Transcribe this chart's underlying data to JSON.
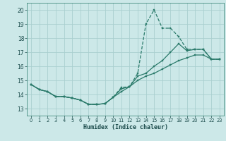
{
  "xlabel": "Humidex (Indice chaleur)",
  "ylabel": "",
  "xlim": [
    -0.5,
    23.5
  ],
  "ylim": [
    12.5,
    20.5
  ],
  "yticks": [
    13,
    14,
    15,
    16,
    17,
    18,
    19,
    20
  ],
  "xticks": [
    0,
    1,
    2,
    3,
    4,
    5,
    6,
    7,
    8,
    9,
    10,
    11,
    12,
    13,
    14,
    15,
    16,
    17,
    18,
    19,
    20,
    21,
    22,
    23
  ],
  "bg_color": "#cce8e8",
  "grid_color": "#aacfcf",
  "line_color": "#2a7a6a",
  "line1_x": [
    0,
    1,
    2,
    3,
    4,
    5,
    6,
    7,
    8,
    9,
    10,
    11,
    12,
    13,
    14,
    15,
    16,
    17,
    18,
    19,
    20,
    21,
    22,
    23
  ],
  "line1_y": [
    14.7,
    14.35,
    14.2,
    13.85,
    13.85,
    13.75,
    13.6,
    13.3,
    13.3,
    13.35,
    13.8,
    14.5,
    14.55,
    15.5,
    19.0,
    20.0,
    18.7,
    18.7,
    18.1,
    17.2,
    17.2,
    17.2,
    16.5,
    16.5
  ],
  "line2_x": [
    0,
    1,
    2,
    3,
    4,
    5,
    6,
    7,
    8,
    9,
    10,
    11,
    12,
    13,
    14,
    15,
    16,
    17,
    18,
    19,
    20,
    21,
    22,
    23
  ],
  "line2_y": [
    14.7,
    14.35,
    14.2,
    13.85,
    13.85,
    13.75,
    13.6,
    13.3,
    13.3,
    13.35,
    13.8,
    14.4,
    14.55,
    15.3,
    15.5,
    16.0,
    16.4,
    17.0,
    17.6,
    17.1,
    17.2,
    17.2,
    16.5,
    16.5
  ],
  "line3_x": [
    0,
    1,
    2,
    3,
    4,
    5,
    6,
    7,
    8,
    9,
    10,
    11,
    12,
    13,
    14,
    15,
    16,
    17,
    18,
    19,
    20,
    21,
    22,
    23
  ],
  "line3_y": [
    14.7,
    14.35,
    14.2,
    13.85,
    13.85,
    13.75,
    13.6,
    13.3,
    13.3,
    13.35,
    13.8,
    14.2,
    14.55,
    15.0,
    15.3,
    15.5,
    15.8,
    16.1,
    16.4,
    16.6,
    16.8,
    16.8,
    16.5,
    16.5
  ]
}
